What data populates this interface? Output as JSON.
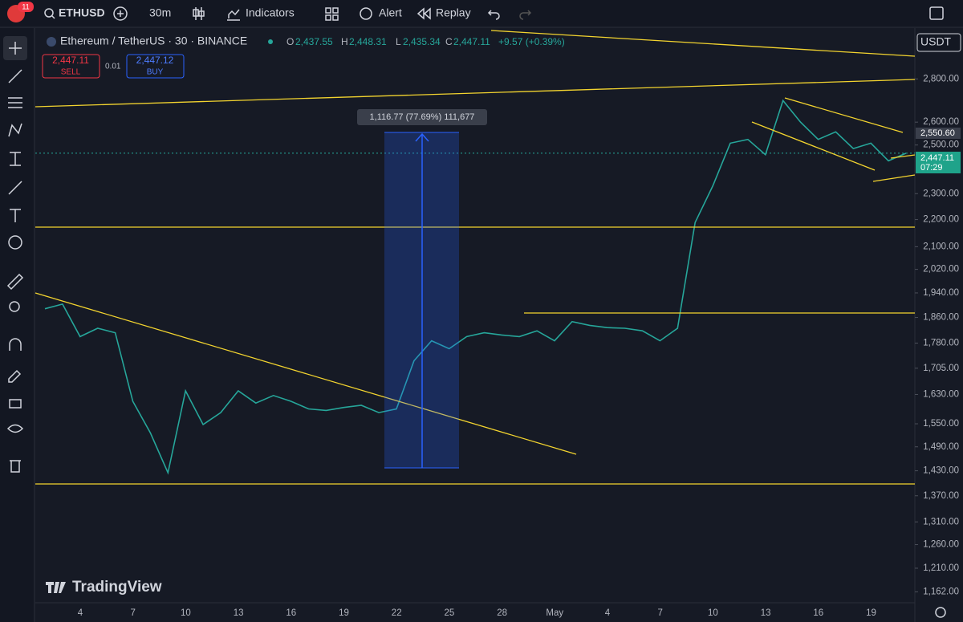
{
  "toolbar": {
    "badge": "11",
    "symbol": "ETHUSD",
    "interval": "30m",
    "indicators": "Indicators",
    "alert": "Alert",
    "replay": "Replay"
  },
  "legend": {
    "title": "Ethereum / TetherUS · 30 · BINANCE",
    "o_label": "O",
    "o": "2,437.55",
    "h_label": "H",
    "h": "2,448.31",
    "l_label": "L",
    "l": "2,435.34",
    "c_label": "C",
    "c": "2,447.11",
    "change": "+9.57 (+0.39%)"
  },
  "order_panel": {
    "sell_price": "2,447.11",
    "sell": "SELL",
    "spread": "0.01",
    "buy_price": "2,447.12",
    "buy": "BUY"
  },
  "currency": "USDT",
  "branding": "TradingView",
  "chart_data": {
    "type": "line",
    "color": "#26a69a",
    "values": [
      1888,
      1903,
      1800,
      1826,
      1812,
      1611,
      1526,
      1425,
      1640,
      1548,
      1580,
      1640,
      1606,
      1627,
      1611,
      1590,
      1586,
      1594,
      1600,
      1580,
      1590,
      1727,
      1787,
      1763,
      1800,
      1812,
      1805,
      1800,
      1818,
      1787,
      1847,
      1835,
      1828,
      1826,
      1818,
      1787,
      1826,
      2189,
      2330,
      2508,
      2524,
      2459,
      2698,
      2600,
      2524,
      2557,
      2485,
      2508,
      2433,
      2465
    ],
    "log_scale": true,
    "ylim": [
      1142,
      3055
    ],
    "yticks": [
      {
        "value": 2800,
        "label": "2,800.00"
      },
      {
        "value": 2600,
        "label": "2,600.00"
      },
      {
        "value": 2500,
        "label": "2,500.00"
      },
      {
        "value": 2300,
        "label": "2,300.00"
      },
      {
        "value": 2200,
        "label": "2,200.00"
      },
      {
        "value": 2100,
        "label": "2,100.00"
      },
      {
        "value": 2020,
        "label": "2,020.00"
      },
      {
        "value": 1940,
        "label": "1,940.00"
      },
      {
        "value": 1860,
        "label": "1,860.00"
      },
      {
        "value": 1780,
        "label": "1,780.00"
      },
      {
        "value": 1705,
        "label": "1,705.00"
      },
      {
        "value": 1630,
        "label": "1,630.00"
      },
      {
        "value": 1550,
        "label": "1,550.00"
      },
      {
        "value": 1490,
        "label": "1,490.00"
      },
      {
        "value": 1430,
        "label": "1,430.00"
      },
      {
        "value": 1370,
        "label": "1,370.00"
      },
      {
        "value": 1310,
        "label": "1,310.00"
      },
      {
        "value": 1260,
        "label": "1,260.00"
      },
      {
        "value": 1210,
        "label": "1,210.00"
      },
      {
        "value": 1162,
        "label": "1,162.00"
      }
    ],
    "xtick_labels": [
      "4",
      "7",
      "10",
      "13",
      "16",
      "19",
      "22",
      "25",
      "28",
      "May",
      "4",
      "7",
      "10",
      "13",
      "16",
      "19"
    ],
    "grid": false,
    "measure_label": "1,116.77 (77.69%) 111,677",
    "price_tags": {
      "upper": "2,550.60",
      "last": "2,447.11",
      "countdown": "07:29"
    }
  }
}
